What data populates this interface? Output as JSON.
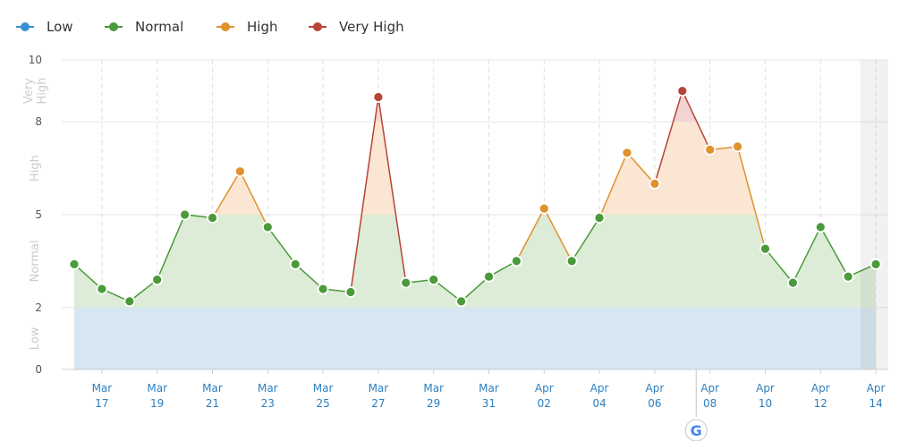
{
  "legend": [
    {
      "label": "Low",
      "color": "#3a8fd0"
    },
    {
      "label": "Normal",
      "color": "#4a9a3a"
    },
    {
      "label": "High",
      "color": "#e0922d"
    },
    {
      "label": "Very High",
      "color": "#b84438"
    }
  ],
  "chart_data": {
    "type": "area",
    "categories": [
      "Mar 16",
      "Mar 17",
      "Mar 18",
      "Mar 19",
      "Mar 20",
      "Mar 21",
      "Mar 22",
      "Mar 23",
      "Mar 24",
      "Mar 25",
      "Mar 26",
      "Mar 27",
      "Mar 28",
      "Mar 29",
      "Mar 30",
      "Mar 31",
      "Apr 01",
      "Apr 02",
      "Apr 03",
      "Apr 04",
      "Apr 05",
      "Apr 06",
      "Apr 07",
      "Apr 08",
      "Apr 09",
      "Apr 10",
      "Apr 11",
      "Apr 12",
      "Apr 13",
      "Apr 14"
    ],
    "series": [
      {
        "values": [
          3.4,
          2.6,
          2.2,
          2.9,
          5.0,
          4.9,
          6.4,
          4.6,
          3.4,
          2.6,
          2.5,
          8.8,
          2.8,
          2.9,
          2.2,
          3.0,
          3.5,
          5.2,
          3.5,
          4.9,
          7.0,
          6.0,
          9.0,
          7.1,
          7.2,
          3.9,
          2.8,
          4.6,
          3.0,
          3.4
        ],
        "levels": [
          "Normal",
          "Normal",
          "Normal",
          "Normal",
          "Normal",
          "Normal",
          "High",
          "Normal",
          "Normal",
          "Normal",
          "Normal",
          "Very High",
          "Normal",
          "Normal",
          "Normal",
          "Normal",
          "Normal",
          "High",
          "Normal",
          "Normal",
          "High",
          "High",
          "Very High",
          "High",
          "High",
          "Normal",
          "Normal",
          "Normal",
          "Normal",
          "Normal"
        ]
      }
    ],
    "ylim": [
      0,
      10
    ],
    "yticks": [
      "0",
      "2",
      "5",
      "8",
      "10"
    ],
    "bands": [
      {
        "label": "Low",
        "from": 0,
        "to": 2,
        "color": "#d6e6f2"
      },
      {
        "label": "Normal",
        "from": 2,
        "to": 5,
        "color": "#ddecd6"
      },
      {
        "label": "High",
        "from": 5,
        "to": 8,
        "color": "#fae6d2"
      },
      {
        "label": "Very High",
        "from": 8,
        "to": 10,
        "color": "#f2d4d2"
      }
    ],
    "xticks": [
      {
        "index": 1,
        "month": "Mar",
        "day": "17"
      },
      {
        "index": 3,
        "month": "Mar",
        "day": "19"
      },
      {
        "index": 5,
        "month": "Mar",
        "day": "21"
      },
      {
        "index": 7,
        "month": "Mar",
        "day": "23"
      },
      {
        "index": 9,
        "month": "Mar",
        "day": "25"
      },
      {
        "index": 11,
        "month": "Mar",
        "day": "27"
      },
      {
        "index": 13,
        "month": "Mar",
        "day": "29"
      },
      {
        "index": 15,
        "month": "Mar",
        "day": "31"
      },
      {
        "index": 17,
        "month": "Apr",
        "day": "02"
      },
      {
        "index": 19,
        "month": "Apr",
        "day": "04"
      },
      {
        "index": 21,
        "month": "Apr",
        "day": "06"
      },
      {
        "index": 23,
        "month": "Apr",
        "day": "08"
      },
      {
        "index": 25,
        "month": "Apr",
        "day": "10"
      },
      {
        "index": 27,
        "month": "Apr",
        "day": "12"
      },
      {
        "index": 29,
        "month": "Apr",
        "day": "14"
      }
    ],
    "annotations": [
      {
        "index": 22.5,
        "icon": "google-icon"
      }
    ],
    "grid": true,
    "legend_position": "top-left"
  }
}
